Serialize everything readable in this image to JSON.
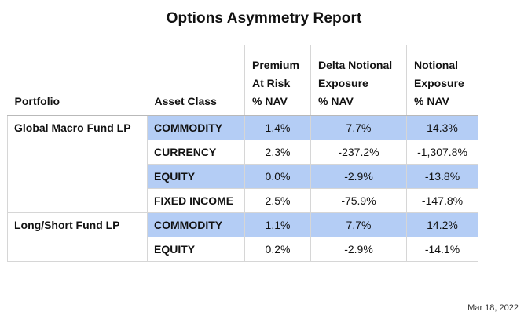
{
  "title": "Options Asymmetry Report",
  "columns": {
    "portfolio": "Portfolio",
    "asset_class": "Asset Class",
    "premium": [
      "Premium",
      "At Risk",
      "% NAV"
    ],
    "delta": [
      "Delta Notional",
      "Exposure",
      "% NAV"
    ],
    "notional": [
      "Notional",
      "Exposure",
      "% NAV"
    ]
  },
  "groups": [
    {
      "portfolio": "Global Macro Fund LP",
      "rows": [
        {
          "asset_class": "COMMODITY",
          "premium": "1.4%",
          "delta": "7.7%",
          "notional": "14.3%",
          "highlight": true
        },
        {
          "asset_class": "CURRENCY",
          "premium": "2.3%",
          "delta": "-237.2%",
          "notional": "-1,307.8%",
          "highlight": false
        },
        {
          "asset_class": "EQUITY",
          "premium": "0.0%",
          "delta": "-2.9%",
          "notional": "-13.8%",
          "highlight": true
        },
        {
          "asset_class": "FIXED INCOME",
          "premium": "2.5%",
          "delta": "-75.9%",
          "notional": "-147.8%",
          "highlight": false
        }
      ]
    },
    {
      "portfolio": "Long/Short Fund LP",
      "rows": [
        {
          "asset_class": "COMMODITY",
          "premium": "1.1%",
          "delta": "7.7%",
          "notional": "14.2%",
          "highlight": true
        },
        {
          "asset_class": "EQUITY",
          "premium": "0.2%",
          "delta": "-2.9%",
          "notional": "-14.1%",
          "highlight": false
        }
      ]
    }
  ],
  "highlight_color": "#b4cdf5",
  "date": "Mar 18, 2022"
}
